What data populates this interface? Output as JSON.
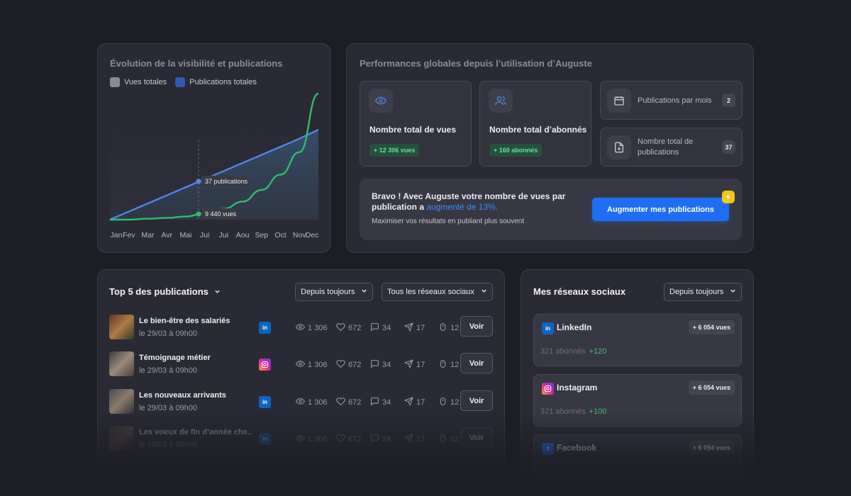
{
  "chart_card": {
    "title": "Évolution de la visibilité et publications",
    "legend": [
      {
        "label": "Vues totales",
        "color": "#8a8a93"
      },
      {
        "label": "Publications totales",
        "color": "#2f5bb8"
      }
    ],
    "tooltip_publications": "37 publications",
    "tooltip_views": "9 440 vues"
  },
  "chart_data": {
    "type": "line",
    "categories": [
      "Jan",
      "Fev",
      "Mar",
      "Avr",
      "Mai",
      "Jui",
      "Jui",
      "Aou",
      "Sep",
      "Oct",
      "Nov",
      "Dec"
    ],
    "series": [
      {
        "name": "Publications totales",
        "color": "#4f86e8",
        "values": [
          0,
          0.09,
          0.18,
          0.27,
          0.36,
          0.45,
          0.54,
          0.63,
          0.72,
          0.81,
          0.9,
          1.0
        ]
      },
      {
        "name": "Vues totales",
        "color": "#2fbd6b",
        "values": [
          0,
          0.0,
          0.01,
          0.02,
          0.035,
          0.07,
          0.12,
          0.2,
          0.33,
          0.5,
          0.75,
          1.4
        ]
      }
    ],
    "marker_index": 5,
    "grid": false
  },
  "perf_card": {
    "title": "Performances globales depuis l’utilisation d’Auguste",
    "stats": [
      {
        "label": "Nombre total de vues",
        "badge": "+ 12 306 vues",
        "icon": "eye-icon"
      },
      {
        "label": "Nombre total d’abonnés",
        "badge": "+ 160 abonnés",
        "icon": "users-icon"
      }
    ],
    "mini": [
      {
        "label": "Publications par mois",
        "count": "2",
        "icon": "calendar-icon"
      },
      {
        "label": "Nombre total de publications",
        "count": "37",
        "icon": "document-icon"
      }
    ],
    "bravo_prefix": "Bravo ! Avec Auguste votre nombre de vues par publication a ",
    "bravo_highlight": "augmenté de 13%.",
    "bravo_sub": "Maximiser vos résultats en publiant plus souvent",
    "cta_label": "Augmenter mes publications"
  },
  "top_card": {
    "title": "Top 5 des publications",
    "period_dropdown": "Depuis toujours",
    "network_dropdown": "Tous les réseaux sociaux",
    "voir_label": "Voir",
    "rows": [
      {
        "title": "Le bien-être des salariés",
        "date": "le 29/03 à 09h00",
        "network": "in",
        "views": "1 306",
        "likes": "672",
        "comments": "34",
        "shares": "17",
        "clicks": "12"
      },
      {
        "title": "Témoignage métier",
        "date": "le 29/03 à 09h00",
        "network": "ig",
        "views": "1 306",
        "likes": "672",
        "comments": "34",
        "shares": "17",
        "clicks": "12"
      },
      {
        "title": "Les nouveaux arrivants",
        "date": "le 29/03 à 09h00",
        "network": "in",
        "views": "1 306",
        "likes": "672",
        "comments": "34",
        "shares": "17",
        "clicks": "12"
      },
      {
        "title": "Les voeux de fin d’année che...",
        "date": "le 29/03 à 09h00",
        "network": "in",
        "views": "1 306",
        "likes": "672",
        "comments": "34",
        "shares": "17",
        "clicks": "12"
      }
    ]
  },
  "net_card": {
    "title": "Mes réseaux sociaux",
    "period_dropdown": "Depuis toujours",
    "networks": [
      {
        "name": "LinkedIn",
        "views": "+ 6 054 vues",
        "subs": "321 abonnés",
        "plus": "+120",
        "icon": "in"
      },
      {
        "name": "Instagram",
        "views": "+ 6 054 vues",
        "subs": "321 abonnés",
        "plus": "+100",
        "icon": "ig"
      },
      {
        "name": "Facebook",
        "views": "+ 6 054 vues",
        "subs": "",
        "plus": "",
        "icon": "f"
      }
    ]
  }
}
